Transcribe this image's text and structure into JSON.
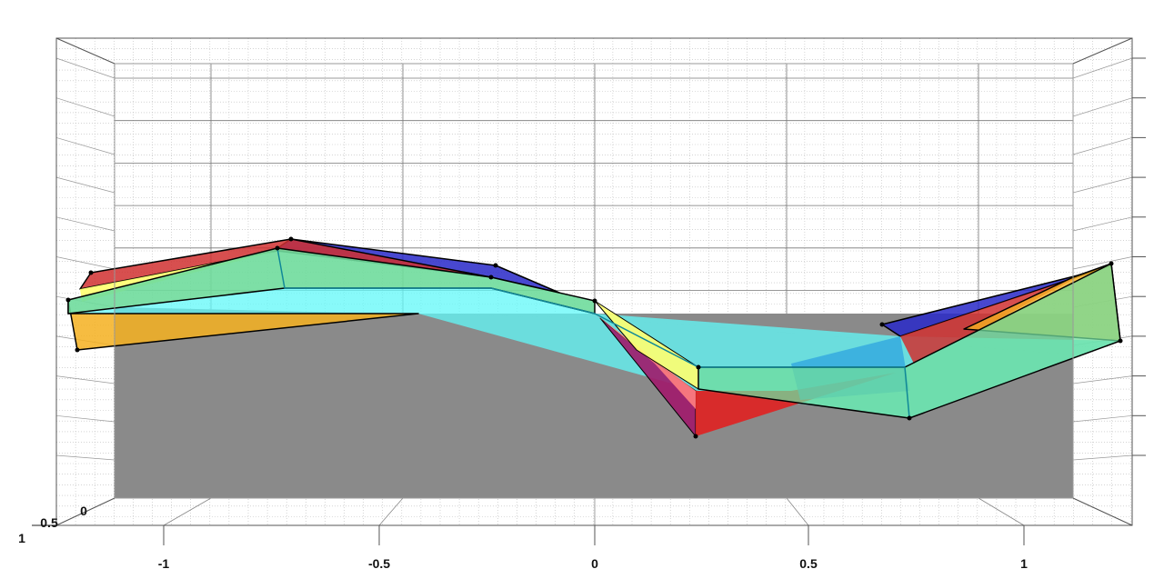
{
  "chart_data": {
    "type": "3d-patch",
    "title": "",
    "xlabel": "",
    "ylabel": "",
    "zlabel": "",
    "x_ticks": [
      "-1",
      "-0.5",
      "0",
      "0.5",
      "1"
    ],
    "y_ticks": [
      "0",
      "0.5",
      "1"
    ],
    "xlim": [
      -1.25,
      1.25
    ],
    "grid": "on (major and minor)",
    "patch_colors": {
      "blue": "#2828c8",
      "red": "#e02020",
      "magenta": "#a0186a",
      "yellow": "#ffff70",
      "green": "#6fdc9c",
      "orange": "#f5b020",
      "cyan": "#60f8f8",
      "floor": "#8a8a8a"
    }
  }
}
